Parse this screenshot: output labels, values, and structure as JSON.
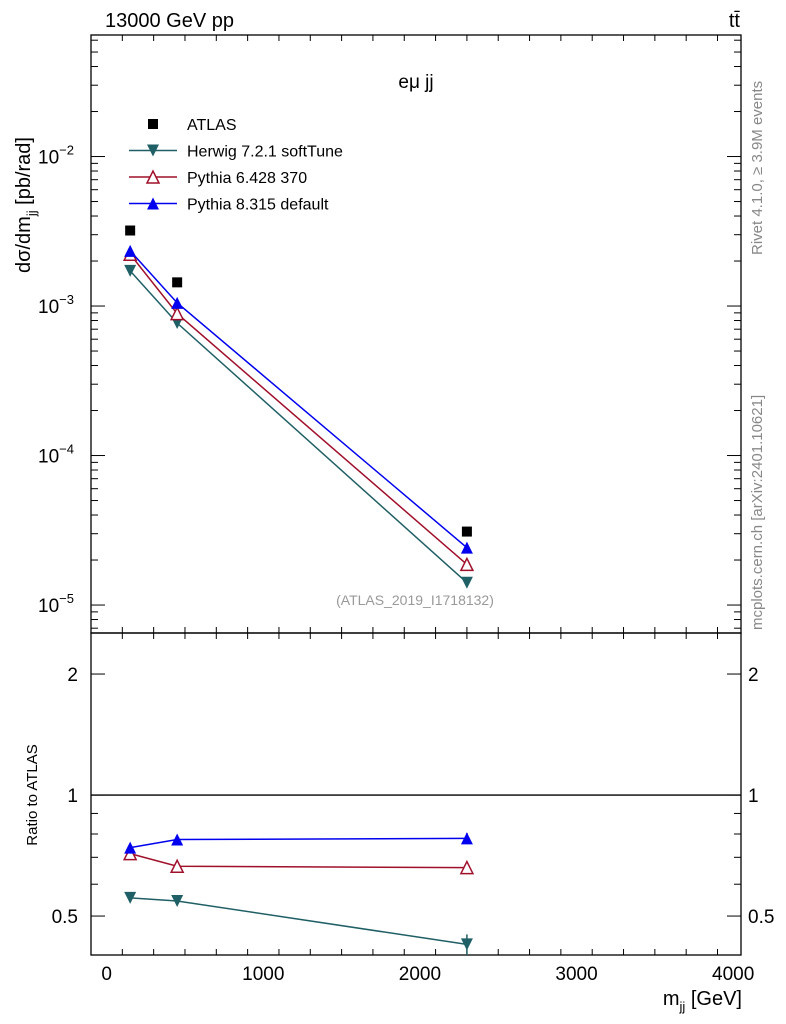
{
  "header": {
    "left": "13000 GeV pp",
    "right": "tt̄"
  },
  "side_labels": {
    "rivet": "Rivet 4.1.0, ≥ 3.9M events",
    "mcplots": "mcplots.cern.ch [arXiv:2401.10621]"
  },
  "chart_data": [
    {
      "type": "line",
      "panel": "main",
      "title": "eμ jj",
      "watermark": "(ATLAS_2019_I1718132)",
      "ylabel": "dσ/dm_jj [pb/rad]",
      "yscale": "log",
      "ylim": [
        6.5e-06,
        0.065
      ],
      "xlim": [
        -100,
        4050
      ],
      "ytick_labels": [
        {
          "v": 0.01,
          "base": "10",
          "exp": "−2"
        },
        {
          "v": 0.001,
          "base": "10",
          "exp": "−3"
        },
        {
          "v": 0.0001,
          "base": "10",
          "exp": "−4"
        },
        {
          "v": 1e-05,
          "base": "10",
          "exp": "−5"
        }
      ],
      "legend_position": "top-left",
      "x": [
        150,
        450,
        2300
      ],
      "series": [
        {
          "name": "ATLAS",
          "color": "#000000",
          "marker": "square",
          "line": false,
          "values": [
            0.0032,
            0.00144,
            3.1e-05
          ]
        },
        {
          "name": "Herwig 7.2.1 softTune",
          "color": "#1f5f66",
          "marker": "triangle-down",
          "line": true,
          "values": [
            0.00172,
            0.00077,
            1.41e-05
          ]
        },
        {
          "name": "Pythia 6.428 370",
          "color": "#a0102a",
          "marker": "triangle-open",
          "line": true,
          "values": [
            0.00222,
            0.00089,
            1.87e-05
          ]
        },
        {
          "name": "Pythia 8.315 default",
          "color": "#0000ee",
          "marker": "triangle-up",
          "line": true,
          "values": [
            0.00234,
            0.00105,
            2.42e-05
          ]
        }
      ]
    },
    {
      "type": "line",
      "panel": "ratio",
      "ylabel": "Ratio to ATLAS",
      "xlabel": "m_jj [GeV]",
      "yscale": "log",
      "ylim": [
        0.4,
        2.53
      ],
      "xlim": [
        -100,
        4050
      ],
      "xtick_labels": [
        "0",
        "1000",
        "2000",
        "3000",
        "4000"
      ],
      "xticks": [
        0,
        1000,
        2000,
        3000,
        4000
      ],
      "ytick_labels": [
        "2",
        "1",
        "0.5"
      ],
      "yticks": [
        2,
        1,
        0.5
      ],
      "x": [
        150,
        450,
        2300
      ],
      "series": [
        {
          "name": "Herwig 7.2.1 softTune",
          "color": "#1f5f66",
          "marker": "triangle-down",
          "values": [
            0.555,
            0.545,
            0.425
          ],
          "err": [
            0.005,
            0.005,
            0.025
          ]
        },
        {
          "name": "Pythia 6.428 370",
          "color": "#a0102a",
          "marker": "triangle-open",
          "values": [
            0.715,
            0.665,
            0.66
          ],
          "err": [
            0.005,
            0.005,
            0.02
          ]
        },
        {
          "name": "Pythia 8.315 default",
          "color": "#0000ee",
          "marker": "triangle-up",
          "values": [
            0.74,
            0.775,
            0.78
          ],
          "err": [
            0.005,
            0.005,
            0.025
          ]
        }
      ]
    }
  ]
}
